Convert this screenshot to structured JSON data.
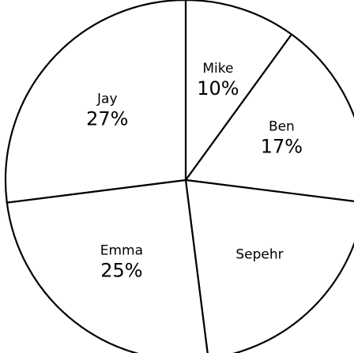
{
  "chart_data": {
    "type": "pie",
    "title": "",
    "slices": [
      {
        "label": "Mike",
        "value": 10,
        "value_label": "10%"
      },
      {
        "label": "Ben",
        "value": 17,
        "value_label": "17%"
      },
      {
        "label": "Sepehr",
        "value": 21,
        "value_label": ""
      },
      {
        "label": "Emma",
        "value": 25,
        "value_label": "25%"
      },
      {
        "label": "Jay",
        "value": 27,
        "value_label": "27%"
      }
    ],
    "start_direction": "top",
    "direction": "clockwise",
    "legend": "none",
    "colors": {
      "fill": "#ffffff",
      "stroke": "#000000",
      "text": "#000000"
    }
  }
}
